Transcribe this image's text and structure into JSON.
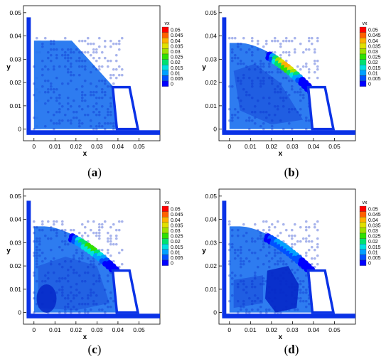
{
  "chart_data": [
    {
      "type": "heatmap",
      "panel_label": "a",
      "xlabel": "x",
      "ylabel": "y",
      "xlim": [
        -0.005,
        0.06
      ],
      "ylim": [
        -0.005,
        0.053
      ],
      "x_ticks": [
        "0",
        "0.01",
        "0.02",
        "0.03",
        "0.04",
        "0.05"
      ],
      "y_ticks": [
        "0",
        "0.01",
        "0.02",
        "0.03",
        "0.04",
        "0.05"
      ],
      "legend": {
        "title": "vx",
        "position": "right",
        "levels": [
          "0.05",
          "0.045",
          "0.04",
          "0.035",
          "0.03",
          "0.025",
          "0.02",
          "0.015",
          "0.01",
          "0.005",
          "0"
        ]
      },
      "fluid_x_max_at_base": 0.038,
      "peak_vx": 0.0
    },
    {
      "type": "heatmap",
      "panel_label": "b",
      "xlabel": "x",
      "ylabel": "y",
      "xlim": [
        -0.005,
        0.06
      ],
      "ylim": [
        -0.005,
        0.053
      ],
      "x_ticks": [
        "0",
        "0.01",
        "0.02",
        "0.03",
        "0.04",
        "0.05"
      ],
      "y_ticks": [
        "0",
        "0.01",
        "0.02",
        "0.03",
        "0.04",
        "0.05"
      ],
      "legend": {
        "title": "vx",
        "position": "right",
        "levels": [
          "0.05",
          "0.045",
          "0.04",
          "0.035",
          "0.03",
          "0.025",
          "0.02",
          "0.015",
          "0.01",
          "0.005",
          "0"
        ]
      },
      "peak_vx": 0.04
    },
    {
      "type": "heatmap",
      "panel_label": "c",
      "xlabel": "x",
      "ylabel": "y",
      "xlim": [
        -0.005,
        0.06
      ],
      "ylim": [
        -0.005,
        0.053
      ],
      "x_ticks": [
        "0",
        "0.01",
        "0.02",
        "0.03",
        "0.04",
        "0.05"
      ],
      "y_ticks": [
        "0",
        "0.01",
        "0.02",
        "0.03",
        "0.04",
        "0.05"
      ],
      "legend": {
        "title": "vx",
        "position": "right",
        "levels": [
          "0.05",
          "0.045",
          "0.04",
          "0.035",
          "0.03",
          "0.025",
          "0.02",
          "0.015",
          "0.01",
          "0.005",
          "0"
        ]
      },
      "peak_vx": 0.025
    },
    {
      "type": "heatmap",
      "panel_label": "d",
      "xlabel": "x",
      "ylabel": "y",
      "xlim": [
        -0.005,
        0.06
      ],
      "ylim": [
        -0.005,
        0.053
      ],
      "x_ticks": [
        "0",
        "0.01",
        "0.02",
        "0.03",
        "0.04",
        "0.05"
      ],
      "y_ticks": [
        "0",
        "0.01",
        "0.02",
        "0.03",
        "0.04",
        "0.05"
      ],
      "legend": {
        "title": "vx",
        "position": "right",
        "levels": [
          "0.05",
          "0.045",
          "0.04",
          "0.035",
          "0.03",
          "0.025",
          "0.02",
          "0.015",
          "0.01",
          "0.005",
          "0"
        ]
      },
      "peak_vx": 0.012
    }
  ],
  "colors": {
    "colormap": [
      "#0000ff",
      "#0050ff",
      "#00a0ff",
      "#00e0e0",
      "#00e070",
      "#30e000",
      "#a0e000",
      "#e0e000",
      "#ffb000",
      "#ff6000",
      "#ff0000"
    ],
    "fluid": "#2e7cf0",
    "wall": "#0a32e6",
    "slow": "#0528c8"
  }
}
